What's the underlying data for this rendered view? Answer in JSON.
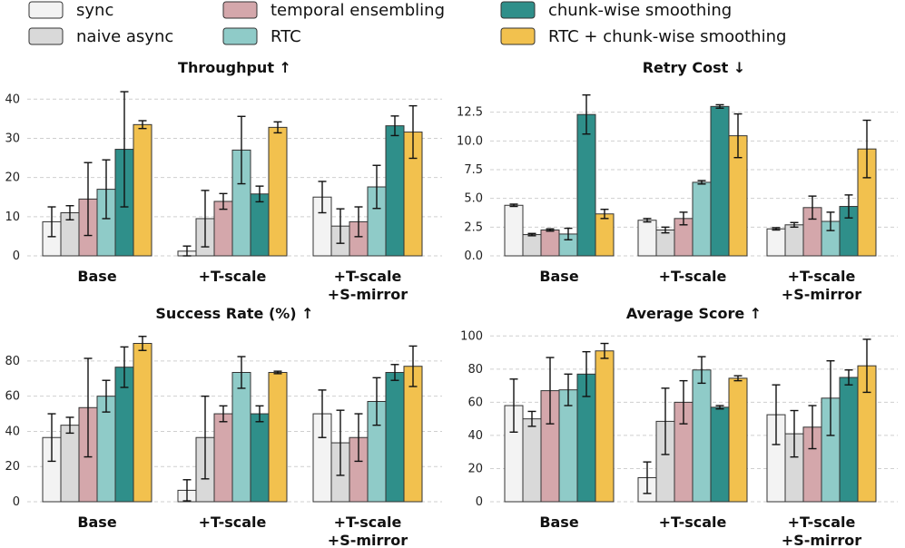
{
  "legend": [
    {
      "name": "sync",
      "color": "#f3f3f3"
    },
    {
      "name": "naive async",
      "color": "#d9d9d9"
    },
    {
      "name": "temporal ensembling",
      "color": "#d4a7ab"
    },
    {
      "name": "RTC",
      "color": "#8fcbc8"
    },
    {
      "name": "chunk-wise smoothing",
      "color": "#2f8f8a"
    },
    {
      "name": "RTC + chunk-wise smoothing",
      "color": "#f2c14e"
    }
  ],
  "chart_data": [
    {
      "type": "bar",
      "title": "Throughput ↑",
      "categories": [
        [
          "Base"
        ],
        [
          "+T-scale"
        ],
        [
          "+T-scale",
          "+S-mirror"
        ]
      ],
      "ylim": [
        0,
        44
      ],
      "yticks": [
        0,
        10,
        20,
        30,
        40
      ],
      "yticklabels": [
        "0",
        "10",
        "20",
        "30",
        "40"
      ],
      "series": [
        {
          "name": "sync",
          "values": [
            8.7,
            1.2,
            15.0
          ],
          "err": [
            3.8,
            1.3,
            4.0
          ]
        },
        {
          "name": "naive async",
          "values": [
            11.0,
            9.5,
            7.6
          ],
          "err": [
            1.8,
            7.2,
            4.4
          ]
        },
        {
          "name": "temporal ensembling",
          "values": [
            14.5,
            13.9,
            8.7
          ],
          "err": [
            9.3,
            2.0,
            3.8
          ]
        },
        {
          "name": "RTC",
          "values": [
            17.0,
            27.0,
            17.6
          ],
          "err": [
            7.5,
            8.6,
            5.5
          ]
        },
        {
          "name": "chunk-wise smoothing",
          "values": [
            27.2,
            15.8,
            33.2
          ],
          "err": [
            14.7,
            2.0,
            2.5
          ]
        },
        {
          "name": "RTC + chunk-wise smoothing",
          "values": [
            33.5,
            32.8,
            31.6
          ],
          "err": [
            1.0,
            1.4,
            6.7
          ]
        }
      ]
    },
    {
      "type": "bar",
      "title": "Retry Cost ↓",
      "categories": [
        [
          "Base"
        ],
        [
          "+T-scale"
        ],
        [
          "+T-scale",
          "+S-mirror"
        ]
      ],
      "ylim": [
        0,
        15
      ],
      "yticks": [
        0,
        2.5,
        5,
        7.5,
        10,
        12.5
      ],
      "yticklabels": [
        "0.0",
        "2.5",
        "5.0",
        "7.5",
        "10.0",
        "12.5"
      ],
      "series": [
        {
          "name": "sync",
          "values": [
            4.4,
            3.1,
            2.35
          ],
          "err": [
            0.1,
            0.15,
            0.1
          ]
        },
        {
          "name": "naive async",
          "values": [
            1.85,
            2.25,
            2.7
          ],
          "err": [
            0.1,
            0.25,
            0.2
          ]
        },
        {
          "name": "temporal ensembling",
          "values": [
            2.25,
            3.25,
            4.2
          ],
          "err": [
            0.1,
            0.55,
            1.0
          ]
        },
        {
          "name": "RTC",
          "values": [
            1.9,
            6.4,
            3.0
          ],
          "err": [
            0.5,
            0.15,
            0.8
          ]
        },
        {
          "name": "chunk-wise smoothing",
          "values": [
            12.3,
            13.0,
            4.3
          ],
          "err": [
            1.7,
            0.15,
            1.0
          ]
        },
        {
          "name": "RTC + chunk-wise smoothing",
          "values": [
            3.65,
            10.45,
            9.3
          ],
          "err": [
            0.4,
            1.9,
            2.5
          ]
        }
      ]
    },
    {
      "type": "bar",
      "title": "Success Rate (%) ↑",
      "categories": [
        [
          "Base"
        ],
        [
          "+T-scale"
        ],
        [
          "+T-scale",
          "+S-mirror"
        ]
      ],
      "ylim": [
        0,
        98
      ],
      "yticks": [
        0,
        20,
        40,
        60,
        80
      ],
      "yticklabels": [
        "0",
        "20",
        "40",
        "60",
        "80"
      ],
      "series": [
        {
          "name": "sync",
          "values": [
            36.5,
            6.5,
            50.0
          ],
          "err": [
            13.5,
            6.0,
            13.5
          ]
        },
        {
          "name": "naive async",
          "values": [
            43.5,
            36.5,
            33.5
          ],
          "err": [
            4.5,
            23.5,
            18.5
          ]
        },
        {
          "name": "temporal ensembling",
          "values": [
            53.5,
            50.0,
            36.5
          ],
          "err": [
            28.0,
            4.5,
            13.5
          ]
        },
        {
          "name": "RTC",
          "values": [
            60.0,
            73.5,
            57.0
          ],
          "err": [
            9.0,
            9.0,
            13.5
          ]
        },
        {
          "name": "chunk-wise smoothing",
          "values": [
            76.5,
            50.0,
            73.5
          ],
          "err": [
            11.5,
            4.5,
            4.5
          ]
        },
        {
          "name": "RTC + chunk-wise smoothing",
          "values": [
            90.0,
            73.5,
            77.0
          ],
          "err": [
            4.0,
            0.7,
            11.5
          ]
        }
      ]
    },
    {
      "type": "bar",
      "title": "Average Score ↑",
      "categories": [
        [
          "Base"
        ],
        [
          "+T-scale"
        ],
        [
          "+T-scale",
          "+S-mirror"
        ]
      ],
      "ylim": [
        0,
        104
      ],
      "yticks": [
        0,
        20,
        40,
        60,
        80,
        100
      ],
      "yticklabels": [
        "0",
        "20",
        "40",
        "60",
        "80",
        "100"
      ],
      "series": [
        {
          "name": "sync",
          "values": [
            58.0,
            14.5,
            52.5
          ],
          "err": [
            16.0,
            9.5,
            18.0
          ]
        },
        {
          "name": "naive async",
          "values": [
            50.0,
            48.5,
            41.0
          ],
          "err": [
            4.5,
            20.0,
            14.0
          ]
        },
        {
          "name": "temporal ensembling",
          "values": [
            67.0,
            60.0,
            45.0
          ],
          "err": [
            20.0,
            13.0,
            13.0
          ]
        },
        {
          "name": "RTC",
          "values": [
            67.5,
            79.5,
            62.5
          ],
          "err": [
            9.5,
            8.0,
            22.5
          ]
        },
        {
          "name": "chunk-wise smoothing",
          "values": [
            77.0,
            57.0,
            75.0
          ],
          "err": [
            13.5,
            1.0,
            4.5
          ]
        },
        {
          "name": "RTC + chunk-wise smoothing",
          "values": [
            91.0,
            74.5,
            82.0
          ],
          "err": [
            4.5,
            1.5,
            16.0
          ]
        }
      ]
    }
  ]
}
